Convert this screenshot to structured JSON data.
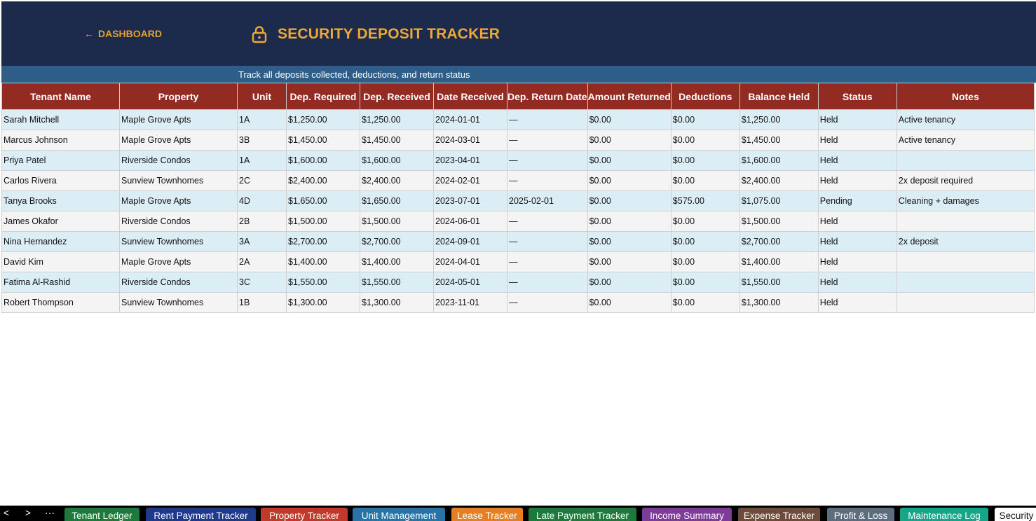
{
  "header": {
    "back_label": "DASHBOARD",
    "back_arrow": "←",
    "title_icon": "lock-icon",
    "title": "SECURITY DEPOSIT TRACKER",
    "accent_color": "#f0a830",
    "background_color": "#1c2a4c"
  },
  "subtitle": "Track all deposits collected, deductions, and return status",
  "table": {
    "columns": [
      "Tenant Name",
      "Property",
      "Unit",
      "Dep. Required",
      "Dep. Received",
      "Date Received",
      "Dep. Return Date",
      "Amount Returned",
      "Deductions",
      "Balance Held",
      "Status",
      "Notes"
    ],
    "rows": [
      [
        "Sarah Mitchell",
        "Maple Grove Apts",
        "1A",
        "$1,250.00",
        "$1,250.00",
        "2024-01-01",
        "—",
        "$0.00",
        "$0.00",
        "$1,250.00",
        "Held",
        "Active tenancy"
      ],
      [
        "Marcus Johnson",
        "Maple Grove Apts",
        "3B",
        "$1,450.00",
        "$1,450.00",
        "2024-03-01",
        "—",
        "$0.00",
        "$0.00",
        "$1,450.00",
        "Held",
        "Active tenancy"
      ],
      [
        "Priya Patel",
        "Riverside Condos",
        "1A",
        "$1,600.00",
        "$1,600.00",
        "2023-04-01",
        "—",
        "$0.00",
        "$0.00",
        "$1,600.00",
        "Held",
        ""
      ],
      [
        "Carlos Rivera",
        "Sunview Townhomes",
        "2C",
        "$2,400.00",
        "$2,400.00",
        "2024-02-01",
        "—",
        "$0.00",
        "$0.00",
        "$2,400.00",
        "Held",
        "2x deposit required"
      ],
      [
        "Tanya Brooks",
        "Maple Grove Apts",
        "4D",
        "$1,650.00",
        "$1,650.00",
        "2023-07-01",
        "2025-02-01",
        "$0.00",
        "$575.00",
        "$1,075.00",
        "Pending",
        "Cleaning + damages"
      ],
      [
        "James Okafor",
        "Riverside Condos",
        "2B",
        "$1,500.00",
        "$1,500.00",
        "2024-06-01",
        "—",
        "$0.00",
        "$0.00",
        "$1,500.00",
        "Held",
        ""
      ],
      [
        "Nina Hernandez",
        "Sunview Townhomes",
        "3A",
        "$2,700.00",
        "$2,700.00",
        "2024-09-01",
        "—",
        "$0.00",
        "$0.00",
        "$2,700.00",
        "Held",
        "2x deposit"
      ],
      [
        "David Kim",
        "Maple Grove Apts",
        "2A",
        "$1,400.00",
        "$1,400.00",
        "2024-04-01",
        "—",
        "$0.00",
        "$0.00",
        "$1,400.00",
        "Held",
        ""
      ],
      [
        "Fatima Al-Rashid",
        "Riverside Condos",
        "3C",
        "$1,550.00",
        "$1,550.00",
        "2024-05-01",
        "—",
        "$0.00",
        "$0.00",
        "$1,550.00",
        "Held",
        ""
      ],
      [
        "Robert Thompson",
        "Sunview Townhomes",
        "1B",
        "$1,300.00",
        "$1,300.00",
        "2023-11-01",
        "—",
        "$0.00",
        "$0.00",
        "$1,300.00",
        "Held",
        ""
      ]
    ]
  },
  "sheet_tabs": {
    "nav": [
      "<",
      ">",
      "···"
    ],
    "tabs": [
      {
        "label": "Tenant Ledger",
        "color": "#1e7a3c"
      },
      {
        "label": "Rent Payment Tracker",
        "color": "#1f3a8a"
      },
      {
        "label": "Property Tracker",
        "color": "#c0392b"
      },
      {
        "label": "Unit Management",
        "color": "#2874a6"
      },
      {
        "label": "Lease Tracker",
        "color": "#e67e22"
      },
      {
        "label": "Late Payment Tracker",
        "color": "#1e7a3c"
      },
      {
        "label": "Income Summary",
        "color": "#7d3c98"
      },
      {
        "label": "Expense Tracker",
        "color": "#6e4b3a"
      },
      {
        "label": "Profit & Loss",
        "color": "#5d6d7e"
      },
      {
        "label": "Maintenance Log",
        "color": "#17a589"
      },
      {
        "label": "Security",
        "color": "#ffffff",
        "active": true
      }
    ]
  }
}
